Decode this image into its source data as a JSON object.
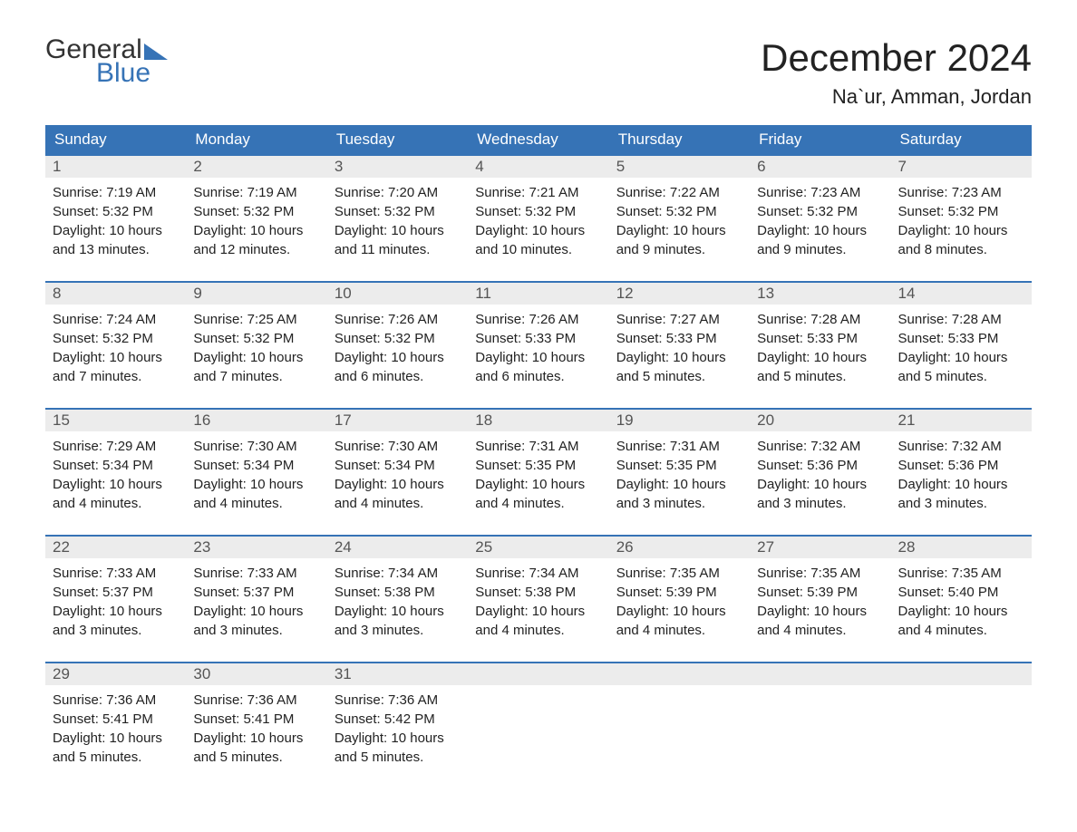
{
  "logo": {
    "top": "General",
    "bottom": "Blue"
  },
  "title": "December 2024",
  "location": "Na`ur, Amman, Jordan",
  "colors": {
    "header_bg": "#3673b6",
    "header_text": "#ffffff",
    "daynum_bg": "#ececec",
    "daynum_text": "#555555",
    "body_text": "#222222",
    "row_border": "#3673b6",
    "logo_gray": "#333333",
    "logo_blue": "#3673b6",
    "page_bg": "#ffffff"
  },
  "day_headers": [
    "Sunday",
    "Monday",
    "Tuesday",
    "Wednesday",
    "Thursday",
    "Friday",
    "Saturday"
  ],
  "weeks": [
    [
      {
        "num": "1",
        "sunrise": "Sunrise: 7:19 AM",
        "sunset": "Sunset: 5:32 PM",
        "dl1": "Daylight: 10 hours",
        "dl2": "and 13 minutes."
      },
      {
        "num": "2",
        "sunrise": "Sunrise: 7:19 AM",
        "sunset": "Sunset: 5:32 PM",
        "dl1": "Daylight: 10 hours",
        "dl2": "and 12 minutes."
      },
      {
        "num": "3",
        "sunrise": "Sunrise: 7:20 AM",
        "sunset": "Sunset: 5:32 PM",
        "dl1": "Daylight: 10 hours",
        "dl2": "and 11 minutes."
      },
      {
        "num": "4",
        "sunrise": "Sunrise: 7:21 AM",
        "sunset": "Sunset: 5:32 PM",
        "dl1": "Daylight: 10 hours",
        "dl2": "and 10 minutes."
      },
      {
        "num": "5",
        "sunrise": "Sunrise: 7:22 AM",
        "sunset": "Sunset: 5:32 PM",
        "dl1": "Daylight: 10 hours",
        "dl2": "and 9 minutes."
      },
      {
        "num": "6",
        "sunrise": "Sunrise: 7:23 AM",
        "sunset": "Sunset: 5:32 PM",
        "dl1": "Daylight: 10 hours",
        "dl2": "and 9 minutes."
      },
      {
        "num": "7",
        "sunrise": "Sunrise: 7:23 AM",
        "sunset": "Sunset: 5:32 PM",
        "dl1": "Daylight: 10 hours",
        "dl2": "and 8 minutes."
      }
    ],
    [
      {
        "num": "8",
        "sunrise": "Sunrise: 7:24 AM",
        "sunset": "Sunset: 5:32 PM",
        "dl1": "Daylight: 10 hours",
        "dl2": "and 7 minutes."
      },
      {
        "num": "9",
        "sunrise": "Sunrise: 7:25 AM",
        "sunset": "Sunset: 5:32 PM",
        "dl1": "Daylight: 10 hours",
        "dl2": "and 7 minutes."
      },
      {
        "num": "10",
        "sunrise": "Sunrise: 7:26 AM",
        "sunset": "Sunset: 5:32 PM",
        "dl1": "Daylight: 10 hours",
        "dl2": "and 6 minutes."
      },
      {
        "num": "11",
        "sunrise": "Sunrise: 7:26 AM",
        "sunset": "Sunset: 5:33 PM",
        "dl1": "Daylight: 10 hours",
        "dl2": "and 6 minutes."
      },
      {
        "num": "12",
        "sunrise": "Sunrise: 7:27 AM",
        "sunset": "Sunset: 5:33 PM",
        "dl1": "Daylight: 10 hours",
        "dl2": "and 5 minutes."
      },
      {
        "num": "13",
        "sunrise": "Sunrise: 7:28 AM",
        "sunset": "Sunset: 5:33 PM",
        "dl1": "Daylight: 10 hours",
        "dl2": "and 5 minutes."
      },
      {
        "num": "14",
        "sunrise": "Sunrise: 7:28 AM",
        "sunset": "Sunset: 5:33 PM",
        "dl1": "Daylight: 10 hours",
        "dl2": "and 5 minutes."
      }
    ],
    [
      {
        "num": "15",
        "sunrise": "Sunrise: 7:29 AM",
        "sunset": "Sunset: 5:34 PM",
        "dl1": "Daylight: 10 hours",
        "dl2": "and 4 minutes."
      },
      {
        "num": "16",
        "sunrise": "Sunrise: 7:30 AM",
        "sunset": "Sunset: 5:34 PM",
        "dl1": "Daylight: 10 hours",
        "dl2": "and 4 minutes."
      },
      {
        "num": "17",
        "sunrise": "Sunrise: 7:30 AM",
        "sunset": "Sunset: 5:34 PM",
        "dl1": "Daylight: 10 hours",
        "dl2": "and 4 minutes."
      },
      {
        "num": "18",
        "sunrise": "Sunrise: 7:31 AM",
        "sunset": "Sunset: 5:35 PM",
        "dl1": "Daylight: 10 hours",
        "dl2": "and 4 minutes."
      },
      {
        "num": "19",
        "sunrise": "Sunrise: 7:31 AM",
        "sunset": "Sunset: 5:35 PM",
        "dl1": "Daylight: 10 hours",
        "dl2": "and 3 minutes."
      },
      {
        "num": "20",
        "sunrise": "Sunrise: 7:32 AM",
        "sunset": "Sunset: 5:36 PM",
        "dl1": "Daylight: 10 hours",
        "dl2": "and 3 minutes."
      },
      {
        "num": "21",
        "sunrise": "Sunrise: 7:32 AM",
        "sunset": "Sunset: 5:36 PM",
        "dl1": "Daylight: 10 hours",
        "dl2": "and 3 minutes."
      }
    ],
    [
      {
        "num": "22",
        "sunrise": "Sunrise: 7:33 AM",
        "sunset": "Sunset: 5:37 PM",
        "dl1": "Daylight: 10 hours",
        "dl2": "and 3 minutes."
      },
      {
        "num": "23",
        "sunrise": "Sunrise: 7:33 AM",
        "sunset": "Sunset: 5:37 PM",
        "dl1": "Daylight: 10 hours",
        "dl2": "and 3 minutes."
      },
      {
        "num": "24",
        "sunrise": "Sunrise: 7:34 AM",
        "sunset": "Sunset: 5:38 PM",
        "dl1": "Daylight: 10 hours",
        "dl2": "and 3 minutes."
      },
      {
        "num": "25",
        "sunrise": "Sunrise: 7:34 AM",
        "sunset": "Sunset: 5:38 PM",
        "dl1": "Daylight: 10 hours",
        "dl2": "and 4 minutes."
      },
      {
        "num": "26",
        "sunrise": "Sunrise: 7:35 AM",
        "sunset": "Sunset: 5:39 PM",
        "dl1": "Daylight: 10 hours",
        "dl2": "and 4 minutes."
      },
      {
        "num": "27",
        "sunrise": "Sunrise: 7:35 AM",
        "sunset": "Sunset: 5:39 PM",
        "dl1": "Daylight: 10 hours",
        "dl2": "and 4 minutes."
      },
      {
        "num": "28",
        "sunrise": "Sunrise: 7:35 AM",
        "sunset": "Sunset: 5:40 PM",
        "dl1": "Daylight: 10 hours",
        "dl2": "and 4 minutes."
      }
    ],
    [
      {
        "num": "29",
        "sunrise": "Sunrise: 7:36 AM",
        "sunset": "Sunset: 5:41 PM",
        "dl1": "Daylight: 10 hours",
        "dl2": "and 5 minutes."
      },
      {
        "num": "30",
        "sunrise": "Sunrise: 7:36 AM",
        "sunset": "Sunset: 5:41 PM",
        "dl1": "Daylight: 10 hours",
        "dl2": "and 5 minutes."
      },
      {
        "num": "31",
        "sunrise": "Sunrise: 7:36 AM",
        "sunset": "Sunset: 5:42 PM",
        "dl1": "Daylight: 10 hours",
        "dl2": "and 5 minutes."
      },
      null,
      null,
      null,
      null
    ]
  ]
}
